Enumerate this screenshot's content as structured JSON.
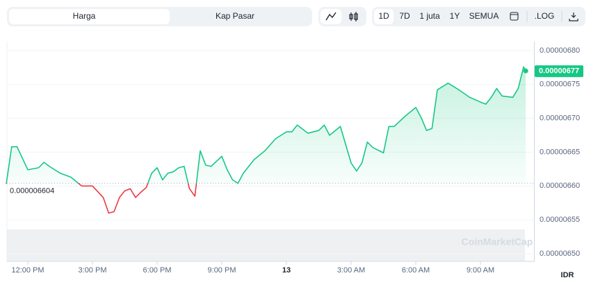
{
  "toolbar": {
    "price_tab": "Harga",
    "market_cap_tab": "Kap Pasar",
    "ranges": [
      "1D",
      "7D",
      "1 juta",
      "1Y",
      "SEMUA"
    ],
    "log": ".LOG"
  },
  "watermark": "CoinMarketCap",
  "chart_data": {
    "type": "line",
    "y_axis_label": "IDR",
    "color": "#16c784",
    "down_color": "#ea3943",
    "base_value": 6.604e-06,
    "base_label": "0.000006604",
    "current_value": 6.77e-06,
    "current_label": "0.00000677",
    "x": [
      11.0,
      11.25,
      11.5,
      11.75,
      12.0,
      12.5,
      12.75,
      13.0,
      13.5,
      14.0,
      14.5,
      15.0,
      15.5,
      15.75,
      16.0,
      16.25,
      16.5,
      16.75,
      17.0,
      17.25,
      17.5,
      17.75,
      18.0,
      18.25,
      18.5,
      18.75,
      19.0,
      19.25,
      19.5,
      19.75,
      20.0,
      20.25,
      20.5,
      21.0,
      21.25,
      21.5,
      21.75,
      22.0,
      22.5,
      23.0,
      23.5,
      24.0,
      24.25,
      24.5,
      25.0,
      25.5,
      25.75,
      26.0,
      26.5,
      27.0,
      27.25,
      27.5,
      27.75,
      28.0,
      28.5,
      28.75,
      29.0,
      29.5,
      30.0,
      30.25,
      30.5,
      30.75,
      31.0,
      31.5,
      32.0,
      32.5,
      33.0,
      33.25,
      33.5,
      33.75,
      34.0,
      34.5,
      34.75,
      35.0,
      35.1
    ],
    "values": [
      6.603e-06,
      6.658e-06,
      6.658e-06,
      6.641e-06,
      6.624e-06,
      6.627e-06,
      6.635e-06,
      6.629e-06,
      6.619e-06,
      6.613e-06,
      6.6e-06,
      6.6e-06,
      6.583e-06,
      6.56e-06,
      6.562e-06,
      6.583e-06,
      6.593e-06,
      6.596e-06,
      6.583e-06,
      6.591e-06,
      6.598e-06,
      6.619e-06,
      6.627e-06,
      6.609e-06,
      6.619e-06,
      6.621e-06,
      6.627e-06,
      6.629e-06,
      6.596e-06,
      6.585e-06,
      6.652e-06,
      6.631e-06,
      6.629e-06,
      6.644e-06,
      6.624e-06,
      6.609e-06,
      6.604e-06,
      6.619e-06,
      6.639e-06,
      6.652e-06,
      6.67e-06,
      6.68e-06,
      6.68e-06,
      6.69e-06,
      6.678e-06,
      6.682e-06,
      6.69e-06,
      6.675e-06,
      6.688e-06,
      6.634e-06,
      6.622e-06,
      6.634e-06,
      6.665e-06,
      6.657e-06,
      6.649e-06,
      6.688e-06,
      6.688e-06,
      6.703e-06,
      6.716e-06,
      6.701e-06,
      6.682e-06,
      6.685e-06,
      6.742e-06,
      6.752e-06,
      6.742e-06,
      6.731e-06,
      6.724e-06,
      6.721e-06,
      6.731e-06,
      6.744e-06,
      6.733e-06,
      6.731e-06,
      6.744e-06,
      6.776e-06,
      6.77e-06
    ],
    "xlim": [
      11,
      35.5
    ],
    "xticks": [
      {
        "value": 12,
        "label": "12:00 PM"
      },
      {
        "value": 15,
        "label": "3:00 PM"
      },
      {
        "value": 18,
        "label": "6:00 PM"
      },
      {
        "value": 21,
        "label": "9:00 PM"
      },
      {
        "value": 24,
        "label": "13"
      },
      {
        "value": 27,
        "label": "3:00 AM"
      },
      {
        "value": 30,
        "label": "6:00 AM"
      },
      {
        "value": 33,
        "label": "9:00 AM"
      }
    ],
    "ylim": [
      6.5e-06,
      6.8e-06
    ],
    "yticks": [
      {
        "value": 6.5e-06,
        "label": "0.00000650"
      },
      {
        "value": 6.55e-06,
        "label": "0.00000655"
      },
      {
        "value": 6.6e-06,
        "label": "0.00000660"
      },
      {
        "value": 6.65e-06,
        "label": "0.00000665"
      },
      {
        "value": 6.7e-06,
        "label": "0.00000670"
      },
      {
        "value": 6.75e-06,
        "label": "0.00000675"
      },
      {
        "value": 6.8e-06,
        "label": "0.00000680"
      }
    ],
    "grid": true
  }
}
